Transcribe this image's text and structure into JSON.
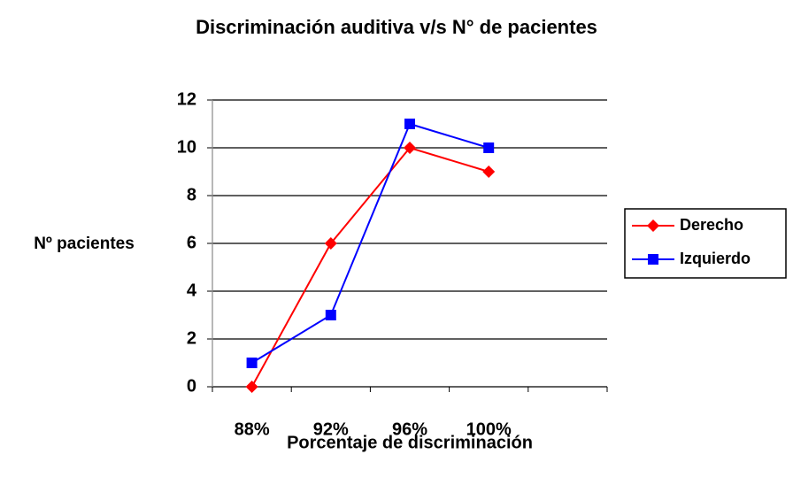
{
  "chart_data": {
    "type": "line",
    "title": "Discriminación auditiva v/s N° de pacientes",
    "x_label": "Porcentaje de discriminación",
    "y_label": "Nº pacientes",
    "categories": [
      "88%",
      "92%",
      "96%",
      "100%",
      null
    ],
    "series": [
      {
        "name": "Derecho",
        "color": "#ff0000",
        "marker": "diamond",
        "values": [
          0,
          6,
          10,
          9,
          null
        ]
      },
      {
        "name": "Izquierdo",
        "color": "#0000ff",
        "marker": "square",
        "values": [
          1,
          3,
          11,
          10,
          null
        ]
      }
    ],
    "ylim": [
      0,
      12
    ],
    "yticks": [
      0,
      2,
      4,
      6,
      8,
      10,
      12
    ],
    "grid": true,
    "legend": "right"
  }
}
